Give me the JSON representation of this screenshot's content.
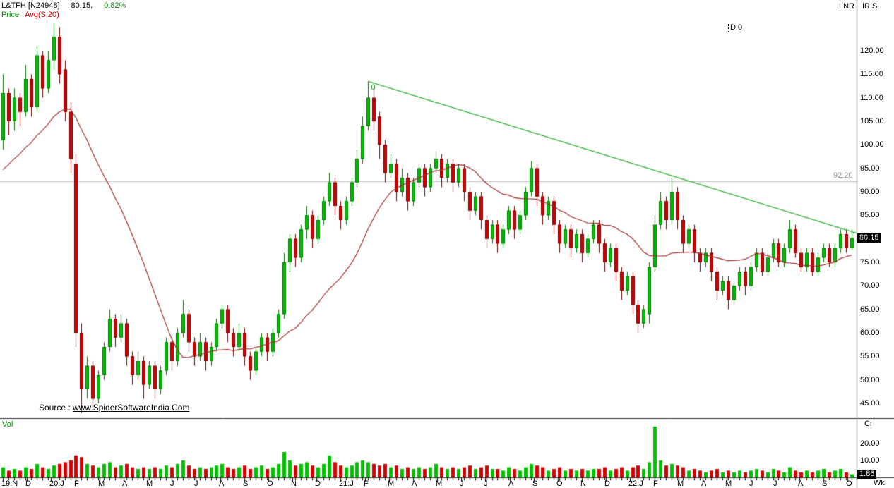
{
  "window": {
    "symbol": "L&TFH [N24948]",
    "last_price_text": "80.15,",
    "change_text": "0.82%",
    "price_series": "Price",
    "avg_series": "Avg(S,20)",
    "scale_mode": "LNR",
    "app_name": "IRIS",
    "data_window": "D 0"
  },
  "source_note": {
    "prefix": "Source : ",
    "url": "www.SpiderSoftwareIndia.Com"
  },
  "volume_pane": {
    "label": "Vol",
    "unit": "Cr"
  },
  "chart_data": {
    "type": "candlestick",
    "title": "L&TFH [N24948] weekly candlestick chart with 20-week average, volume pane and descending trendline",
    "symbol": "L&TFH",
    "interval": "Weekly",
    "price_ylim": [
      43,
      127.5
    ],
    "volume_ylim": [
      0,
      34
    ],
    "price_axis_ticks": [
      120,
      115,
      110,
      105,
      100,
      95,
      90,
      85,
      80,
      75,
      70,
      65,
      60,
      55,
      50,
      45
    ],
    "volume_axis_ticks": [
      20,
      10
    ],
    "time_axis_months": [
      "19:N",
      "D",
      "20:J",
      "F",
      "M",
      "A",
      "M",
      "J",
      "J",
      "A",
      "S",
      "O",
      "N",
      "D",
      "21:J",
      "F",
      "M",
      "A",
      "M",
      "J",
      "J",
      "A",
      "S",
      "O",
      "N",
      "D",
      "22:J",
      "F",
      "M",
      "A",
      "M",
      "J",
      "J",
      "A",
      "S",
      "O"
    ],
    "time_axis_unit": "Wk",
    "last_price": 80.15,
    "last_price_label": "80.15",
    "last_volume_cr": 1.86,
    "last_volume_label": "1.86",
    "change_percent": "0.82%",
    "level_line": {
      "value": 92.2,
      "label": "92.20"
    },
    "trendline": {
      "from_week": 65,
      "from_price": 113.5,
      "to_week": 152,
      "to_price": 81.2,
      "label": "0"
    },
    "ma": {
      "period": 20,
      "seed_closes": [
        84,
        85,
        86,
        87,
        88,
        89,
        90,
        91,
        92,
        94,
        95,
        96,
        97,
        98,
        99,
        100,
        102,
        104,
        106
      ]
    },
    "colors": {
      "up": "#00c000",
      "up_border": "#007800",
      "down": "#d40000",
      "down_border": "#7a0000",
      "ma": "#a52a2a",
      "trendline": "#32b432",
      "level": "#c0c0c0",
      "axis_text": "#000000",
      "badge_bg": "#000000"
    },
    "candles_ohlc": [
      [
        101,
        115,
        99,
        111
      ],
      [
        111,
        112,
        102,
        105
      ],
      [
        105,
        112,
        103,
        110
      ],
      [
        110,
        111,
        104,
        107
      ],
      [
        107,
        117,
        106,
        114
      ],
      [
        114,
        115,
        106,
        108
      ],
      [
        108,
        121,
        107,
        119
      ],
      [
        119,
        120,
        110,
        112
      ],
      [
        112,
        120,
        111,
        118
      ],
      [
        118,
        126,
        116,
        123
      ],
      [
        123,
        125,
        113,
        115
      ],
      [
        116,
        118,
        105,
        107
      ],
      [
        107,
        109,
        94,
        97
      ],
      [
        96,
        98,
        57,
        60
      ],
      [
        60,
        62,
        43,
        48
      ],
      [
        48,
        55,
        46,
        53
      ],
      [
        53,
        54,
        44,
        46
      ],
      [
        46,
        52,
        45,
        51
      ],
      [
        51,
        58,
        50,
        57
      ],
      [
        57,
        65,
        56,
        63
      ],
      [
        63,
        64,
        57,
        59
      ],
      [
        59,
        64,
        58,
        62
      ],
      [
        62,
        63,
        53,
        55
      ],
      [
        55,
        56,
        49,
        51
      ],
      [
        51,
        56,
        50,
        54
      ],
      [
        54,
        55,
        46,
        49
      ],
      [
        49,
        54,
        48,
        53
      ],
      [
        53,
        54,
        46,
        48
      ],
      [
        48,
        53,
        47,
        52
      ],
      [
        52,
        59,
        51,
        58
      ],
      [
        58,
        59,
        52,
        54
      ],
      [
        54,
        61,
        53,
        60
      ],
      [
        60,
        67,
        59,
        64
      ],
      [
        64,
        65,
        56,
        58
      ],
      [
        58,
        59,
        53,
        55
      ],
      [
        55,
        60,
        54,
        58
      ],
      [
        58,
        59,
        52,
        54
      ],
      [
        54,
        58,
        53,
        57
      ],
      [
        57,
        63,
        56,
        62
      ],
      [
        62,
        66,
        61,
        65
      ],
      [
        65,
        66,
        58,
        60
      ],
      [
        60,
        61,
        55,
        57
      ],
      [
        57,
        62,
        56,
        60
      ],
      [
        60,
        61,
        53,
        55
      ],
      [
        55,
        56,
        50,
        52
      ],
      [
        52,
        57,
        51,
        56
      ],
      [
        56,
        60,
        55,
        59
      ],
      [
        59,
        60,
        54,
        56
      ],
      [
        56,
        61,
        55,
        60
      ],
      [
        60,
        65,
        59,
        64
      ],
      [
        64,
        77,
        63,
        75
      ],
      [
        75,
        81,
        73,
        80
      ],
      [
        80,
        81,
        74,
        76
      ],
      [
        76,
        83,
        75,
        82
      ],
      [
        82,
        87,
        80,
        85
      ],
      [
        85,
        86,
        78,
        80
      ],
      [
        80,
        85,
        79,
        84
      ],
      [
        84,
        89,
        83,
        88
      ],
      [
        88,
        94,
        87,
        92
      ],
      [
        92,
        93,
        85,
        87
      ],
      [
        87,
        88,
        82,
        84
      ],
      [
        84,
        89,
        83,
        88
      ],
      [
        88,
        93,
        87,
        92
      ],
      [
        92,
        99,
        91,
        97
      ],
      [
        97,
        106,
        96,
        104
      ],
      [
        104,
        113.5,
        103,
        110
      ],
      [
        110,
        112,
        103,
        105
      ],
      [
        106,
        107,
        97,
        100
      ],
      [
        100,
        101,
        92,
        94
      ],
      [
        94,
        98,
        93,
        96
      ],
      [
        96,
        97,
        88,
        90
      ],
      [
        90,
        95,
        89,
        93
      ],
      [
        93,
        94,
        86,
        88
      ],
      [
        88,
        93,
        87,
        92
      ],
      [
        92,
        96,
        91,
        95
      ],
      [
        95,
        96,
        89,
        91
      ],
      [
        91,
        96,
        90,
        95
      ],
      [
        95,
        98.5,
        94,
        97
      ],
      [
        97,
        98,
        91,
        93
      ],
      [
        93,
        97,
        92,
        96
      ],
      [
        96,
        97,
        90,
        92
      ],
      [
        92,
        96,
        91,
        95
      ],
      [
        95,
        96,
        88,
        90
      ],
      [
        90,
        91,
        84,
        86
      ],
      [
        86,
        90,
        85,
        89
      ],
      [
        89,
        90,
        82,
        84
      ],
      [
        84,
        85,
        78,
        80
      ],
      [
        80,
        84,
        79,
        83
      ],
      [
        83,
        84,
        77,
        79
      ],
      [
        79,
        83,
        78,
        82
      ],
      [
        82,
        87,
        81,
        86
      ],
      [
        86,
        87,
        80,
        82
      ],
      [
        82,
        86,
        81,
        85
      ],
      [
        85,
        91,
        84,
        90
      ],
      [
        90,
        96.5,
        89,
        95
      ],
      [
        95,
        96,
        87,
        89
      ],
      [
        89,
        90,
        83,
        85
      ],
      [
        85,
        89,
        84,
        88
      ],
      [
        88,
        89,
        81,
        83
      ],
      [
        83,
        84,
        77,
        79
      ],
      [
        79,
        83,
        78,
        82
      ],
      [
        82,
        83,
        76,
        78
      ],
      [
        78,
        82,
        77,
        81
      ],
      [
        81,
        82,
        75,
        77
      ],
      [
        77,
        81,
        76,
        80
      ],
      [
        80,
        84,
        79,
        83
      ],
      [
        83,
        84,
        77,
        79
      ],
      [
        79,
        80,
        73,
        75
      ],
      [
        75,
        79,
        74,
        78
      ],
      [
        78,
        79,
        71,
        73
      ],
      [
        73,
        74,
        67,
        69
      ],
      [
        69,
        73,
        68,
        72
      ],
      [
        72,
        73,
        64,
        66
      ],
      [
        66,
        67,
        60,
        62
      ],
      [
        62,
        66,
        61,
        65
      ],
      [
        64,
        75,
        62,
        74
      ],
      [
        74,
        85,
        73,
        83
      ],
      [
        83,
        90,
        82,
        88
      ],
      [
        88,
        89,
        82,
        84
      ],
      [
        84,
        93,
        83,
        90
      ],
      [
        90,
        91,
        82,
        84
      ],
      [
        84,
        85,
        77,
        79
      ],
      [
        79,
        83,
        78,
        82
      ],
      [
        82,
        83,
        75,
        77
      ],
      [
        77,
        78,
        73,
        75
      ],
      [
        75,
        78,
        74,
        77
      ],
      [
        77,
        78,
        71,
        73
      ],
      [
        73,
        74,
        67,
        69
      ],
      [
        69,
        72,
        68,
        71
      ],
      [
        71,
        72,
        65,
        67
      ],
      [
        67,
        71,
        66,
        70
      ],
      [
        70,
        74,
        69,
        73
      ],
      [
        73,
        74,
        68,
        70
      ],
      [
        70,
        75,
        69,
        74
      ],
      [
        74,
        78,
        73,
        77
      ],
      [
        77,
        78,
        72,
        73
      ],
      [
        73,
        77,
        72,
        76
      ],
      [
        76,
        80,
        75,
        79
      ],
      [
        79,
        80,
        74,
        75
      ],
      [
        75,
        79,
        74,
        78
      ],
      [
        78,
        84,
        77,
        82
      ],
      [
        82,
        83,
        76,
        77
      ],
      [
        77,
        78,
        73,
        74
      ],
      [
        74,
        78,
        73,
        77
      ],
      [
        77,
        78,
        72,
        73
      ],
      [
        73,
        77,
        72,
        76
      ],
      [
        76,
        79,
        75,
        78
      ],
      [
        78,
        79,
        74,
        75
      ],
      [
        75,
        79,
        74,
        78
      ],
      [
        78,
        82,
        77,
        81
      ],
      [
        81,
        82,
        77,
        78
      ],
      [
        78,
        82,
        77.5,
        80.15
      ]
    ],
    "volumes_cr": [
      6,
      4,
      5,
      4,
      6,
      5,
      8,
      6,
      5,
      7,
      8,
      9,
      10,
      13,
      12,
      8,
      7,
      6,
      8,
      9,
      6,
      7,
      8,
      6,
      5,
      6,
      5,
      6,
      5,
      7,
      6,
      8,
      10,
      7,
      5,
      6,
      5,
      6,
      7,
      8,
      6,
      5,
      6,
      7,
      5,
      6,
      7,
      5,
      6,
      8,
      15,
      10,
      7,
      8,
      9,
      7,
      6,
      8,
      13,
      9,
      7,
      6,
      7,
      9,
      10,
      9,
      8,
      7,
      8,
      6,
      7,
      5,
      6,
      5,
      6,
      5,
      6,
      8,
      6,
      5,
      6,
      5,
      6,
      7,
      5,
      6,
      7,
      5,
      5,
      4,
      6,
      5,
      4,
      6,
      8,
      7,
      6,
      4,
      5,
      6,
      4,
      5,
      4,
      5,
      4,
      5,
      5,
      6,
      4,
      5,
      6,
      4,
      6,
      7,
      5,
      9,
      30,
      10,
      7,
      8,
      7,
      6,
      4,
      5,
      4,
      3,
      4,
      5,
      3,
      4,
      3,
      4,
      3,
      4,
      5,
      4,
      3,
      5,
      4,
      3,
      6,
      4,
      3,
      4,
      3,
      4,
      5,
      3,
      4,
      5,
      3,
      1.86
    ]
  }
}
